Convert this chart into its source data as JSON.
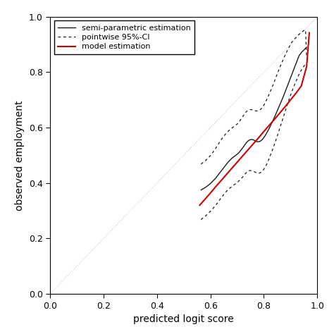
{
  "xlim": [
    0.0,
    1.0
  ],
  "ylim": [
    0.0,
    1.0
  ],
  "xticks": [
    0.0,
    0.2,
    0.4,
    0.6,
    0.8,
    1.0
  ],
  "yticks": [
    0.0,
    0.2,
    0.4,
    0.6,
    0.8,
    1.0
  ],
  "xlabel": "predicted logit score",
  "ylabel": "observed employment",
  "diagonal_color": "#c8c8c8",
  "semi_parametric_color": "#1a1a1a",
  "ci_color": "#1a1a1a",
  "model_color": "#cc0000",
  "legend_labels": [
    "semi-parametric estimation",
    "pointwise 95%-CI",
    "model estimation"
  ],
  "background_color": "#ffffff",
  "font_size": 10,
  "semi_x": [
    0.565,
    0.568,
    0.572,
    0.576,
    0.58,
    0.584,
    0.588,
    0.592,
    0.596,
    0.6,
    0.604,
    0.608,
    0.612,
    0.616,
    0.62,
    0.624,
    0.628,
    0.632,
    0.636,
    0.64,
    0.644,
    0.648,
    0.652,
    0.656,
    0.66,
    0.664,
    0.668,
    0.672,
    0.676,
    0.68,
    0.684,
    0.688,
    0.692,
    0.696,
    0.7,
    0.704,
    0.708,
    0.712,
    0.716,
    0.72,
    0.724,
    0.728,
    0.732,
    0.736,
    0.74,
    0.744,
    0.748,
    0.752,
    0.756,
    0.76,
    0.764,
    0.768,
    0.772,
    0.776,
    0.78,
    0.784,
    0.788,
    0.792,
    0.796,
    0.8,
    0.804,
    0.808,
    0.812,
    0.816,
    0.82,
    0.824,
    0.828,
    0.832,
    0.836,
    0.84,
    0.844,
    0.848,
    0.852,
    0.856,
    0.86,
    0.864,
    0.868,
    0.872,
    0.876,
    0.88,
    0.884,
    0.888,
    0.892,
    0.896,
    0.9,
    0.904,
    0.908,
    0.912,
    0.916,
    0.92,
    0.924,
    0.928,
    0.932,
    0.936,
    0.94,
    0.944,
    0.948,
    0.952,
    0.956,
    0.96
  ],
  "semi_y": [
    0.375,
    0.377,
    0.379,
    0.381,
    0.384,
    0.386,
    0.389,
    0.392,
    0.395,
    0.398,
    0.402,
    0.406,
    0.41,
    0.414,
    0.418,
    0.423,
    0.428,
    0.433,
    0.438,
    0.443,
    0.448,
    0.453,
    0.458,
    0.463,
    0.468,
    0.473,
    0.477,
    0.481,
    0.485,
    0.489,
    0.492,
    0.495,
    0.498,
    0.501,
    0.504,
    0.507,
    0.511,
    0.516,
    0.521,
    0.526,
    0.531,
    0.537,
    0.542,
    0.547,
    0.551,
    0.554,
    0.556,
    0.557,
    0.557,
    0.556,
    0.554,
    0.552,
    0.55,
    0.549,
    0.549,
    0.55,
    0.552,
    0.555,
    0.559,
    0.564,
    0.57,
    0.576,
    0.583,
    0.59,
    0.597,
    0.605,
    0.613,
    0.621,
    0.63,
    0.638,
    0.647,
    0.656,
    0.665,
    0.674,
    0.683,
    0.692,
    0.701,
    0.71,
    0.72,
    0.73,
    0.74,
    0.75,
    0.76,
    0.77,
    0.78,
    0.79,
    0.8,
    0.81,
    0.82,
    0.83,
    0.84,
    0.85,
    0.86,
    0.865,
    0.87,
    0.875,
    0.878,
    0.882,
    0.886,
    0.89
  ],
  "ci_upper_x": [
    0.565,
    0.568,
    0.572,
    0.576,
    0.58,
    0.584,
    0.588,
    0.592,
    0.596,
    0.6,
    0.604,
    0.608,
    0.612,
    0.616,
    0.62,
    0.624,
    0.628,
    0.632,
    0.636,
    0.64,
    0.644,
    0.648,
    0.652,
    0.656,
    0.66,
    0.664,
    0.668,
    0.672,
    0.676,
    0.68,
    0.684,
    0.688,
    0.692,
    0.696,
    0.7,
    0.704,
    0.708,
    0.712,
    0.716,
    0.72,
    0.724,
    0.728,
    0.732,
    0.736,
    0.74,
    0.744,
    0.748,
    0.752,
    0.756,
    0.76,
    0.764,
    0.768,
    0.772,
    0.776,
    0.78,
    0.784,
    0.788,
    0.792,
    0.796,
    0.8,
    0.804,
    0.808,
    0.812,
    0.816,
    0.82,
    0.824,
    0.828,
    0.832,
    0.836,
    0.84,
    0.844,
    0.848,
    0.852,
    0.856,
    0.86,
    0.864,
    0.868,
    0.872,
    0.876,
    0.88,
    0.884,
    0.888,
    0.892,
    0.896,
    0.9,
    0.904,
    0.908,
    0.912,
    0.916,
    0.92,
    0.924,
    0.928,
    0.932,
    0.936,
    0.94,
    0.944,
    0.948,
    0.952,
    0.956,
    0.96
  ],
  "ci_upper_y": [
    0.468,
    0.471,
    0.474,
    0.477,
    0.48,
    0.483,
    0.487,
    0.491,
    0.495,
    0.499,
    0.504,
    0.509,
    0.515,
    0.52,
    0.526,
    0.532,
    0.538,
    0.544,
    0.55,
    0.556,
    0.561,
    0.566,
    0.571,
    0.576,
    0.58,
    0.584,
    0.588,
    0.592,
    0.595,
    0.598,
    0.601,
    0.604,
    0.607,
    0.61,
    0.613,
    0.617,
    0.622,
    0.627,
    0.632,
    0.638,
    0.644,
    0.65,
    0.655,
    0.659,
    0.662,
    0.664,
    0.665,
    0.665,
    0.664,
    0.663,
    0.662,
    0.661,
    0.66,
    0.66,
    0.661,
    0.663,
    0.666,
    0.67,
    0.675,
    0.681,
    0.688,
    0.696,
    0.704,
    0.712,
    0.721,
    0.73,
    0.739,
    0.748,
    0.758,
    0.768,
    0.778,
    0.788,
    0.798,
    0.808,
    0.818,
    0.827,
    0.836,
    0.845,
    0.854,
    0.862,
    0.87,
    0.878,
    0.886,
    0.893,
    0.9,
    0.907,
    0.912,
    0.917,
    0.921,
    0.925,
    0.929,
    0.933,
    0.937,
    0.94,
    0.943,
    0.946,
    0.949,
    0.951,
    0.952,
    0.854
  ],
  "ci_lower_x": [
    0.565,
    0.568,
    0.572,
    0.576,
    0.58,
    0.584,
    0.588,
    0.592,
    0.596,
    0.6,
    0.604,
    0.608,
    0.612,
    0.616,
    0.62,
    0.624,
    0.628,
    0.632,
    0.636,
    0.64,
    0.644,
    0.648,
    0.652,
    0.656,
    0.66,
    0.664,
    0.668,
    0.672,
    0.676,
    0.68,
    0.684,
    0.688,
    0.692,
    0.696,
    0.7,
    0.704,
    0.708,
    0.712,
    0.716,
    0.72,
    0.724,
    0.728,
    0.732,
    0.736,
    0.74,
    0.744,
    0.748,
    0.752,
    0.756,
    0.76,
    0.764,
    0.768,
    0.772,
    0.776,
    0.78,
    0.784,
    0.788,
    0.792,
    0.796,
    0.8,
    0.804,
    0.808,
    0.812,
    0.816,
    0.82,
    0.824,
    0.828,
    0.832,
    0.836,
    0.84,
    0.844,
    0.848,
    0.852,
    0.856,
    0.86,
    0.864,
    0.868,
    0.872,
    0.876,
    0.88,
    0.884,
    0.888,
    0.892,
    0.896,
    0.9,
    0.904,
    0.908,
    0.912,
    0.916,
    0.92,
    0.924,
    0.928,
    0.932,
    0.936,
    0.94,
    0.944,
    0.948,
    0.952,
    0.956,
    0.96
  ],
  "ci_lower_y": [
    0.268,
    0.271,
    0.274,
    0.277,
    0.28,
    0.283,
    0.287,
    0.29,
    0.294,
    0.298,
    0.302,
    0.306,
    0.311,
    0.316,
    0.32,
    0.325,
    0.33,
    0.336,
    0.341,
    0.346,
    0.351,
    0.356,
    0.361,
    0.366,
    0.37,
    0.374,
    0.378,
    0.381,
    0.384,
    0.387,
    0.39,
    0.393,
    0.396,
    0.399,
    0.402,
    0.405,
    0.409,
    0.413,
    0.417,
    0.421,
    0.426,
    0.431,
    0.435,
    0.439,
    0.442,
    0.444,
    0.445,
    0.445,
    0.444,
    0.443,
    0.441,
    0.439,
    0.437,
    0.436,
    0.435,
    0.436,
    0.438,
    0.441,
    0.445,
    0.45,
    0.456,
    0.463,
    0.471,
    0.48,
    0.489,
    0.499,
    0.509,
    0.519,
    0.53,
    0.541,
    0.552,
    0.563,
    0.575,
    0.587,
    0.599,
    0.611,
    0.623,
    0.635,
    0.647,
    0.659,
    0.671,
    0.683,
    0.695,
    0.706,
    0.717,
    0.728,
    0.738,
    0.748,
    0.757,
    0.766,
    0.775,
    0.784,
    0.793,
    0.8,
    0.807,
    0.813,
    0.819,
    0.824,
    0.829,
    0.834
  ],
  "model_x": [
    0.56,
    0.58,
    0.6,
    0.62,
    0.64,
    0.66,
    0.68,
    0.7,
    0.72,
    0.74,
    0.76,
    0.78,
    0.8,
    0.82,
    0.84,
    0.86,
    0.88,
    0.9,
    0.92,
    0.94,
    0.96,
    0.97
  ],
  "model_y": [
    0.32,
    0.342,
    0.364,
    0.387,
    0.409,
    0.431,
    0.453,
    0.475,
    0.497,
    0.519,
    0.541,
    0.563,
    0.586,
    0.608,
    0.63,
    0.653,
    0.676,
    0.7,
    0.724,
    0.75,
    0.82,
    0.942
  ]
}
